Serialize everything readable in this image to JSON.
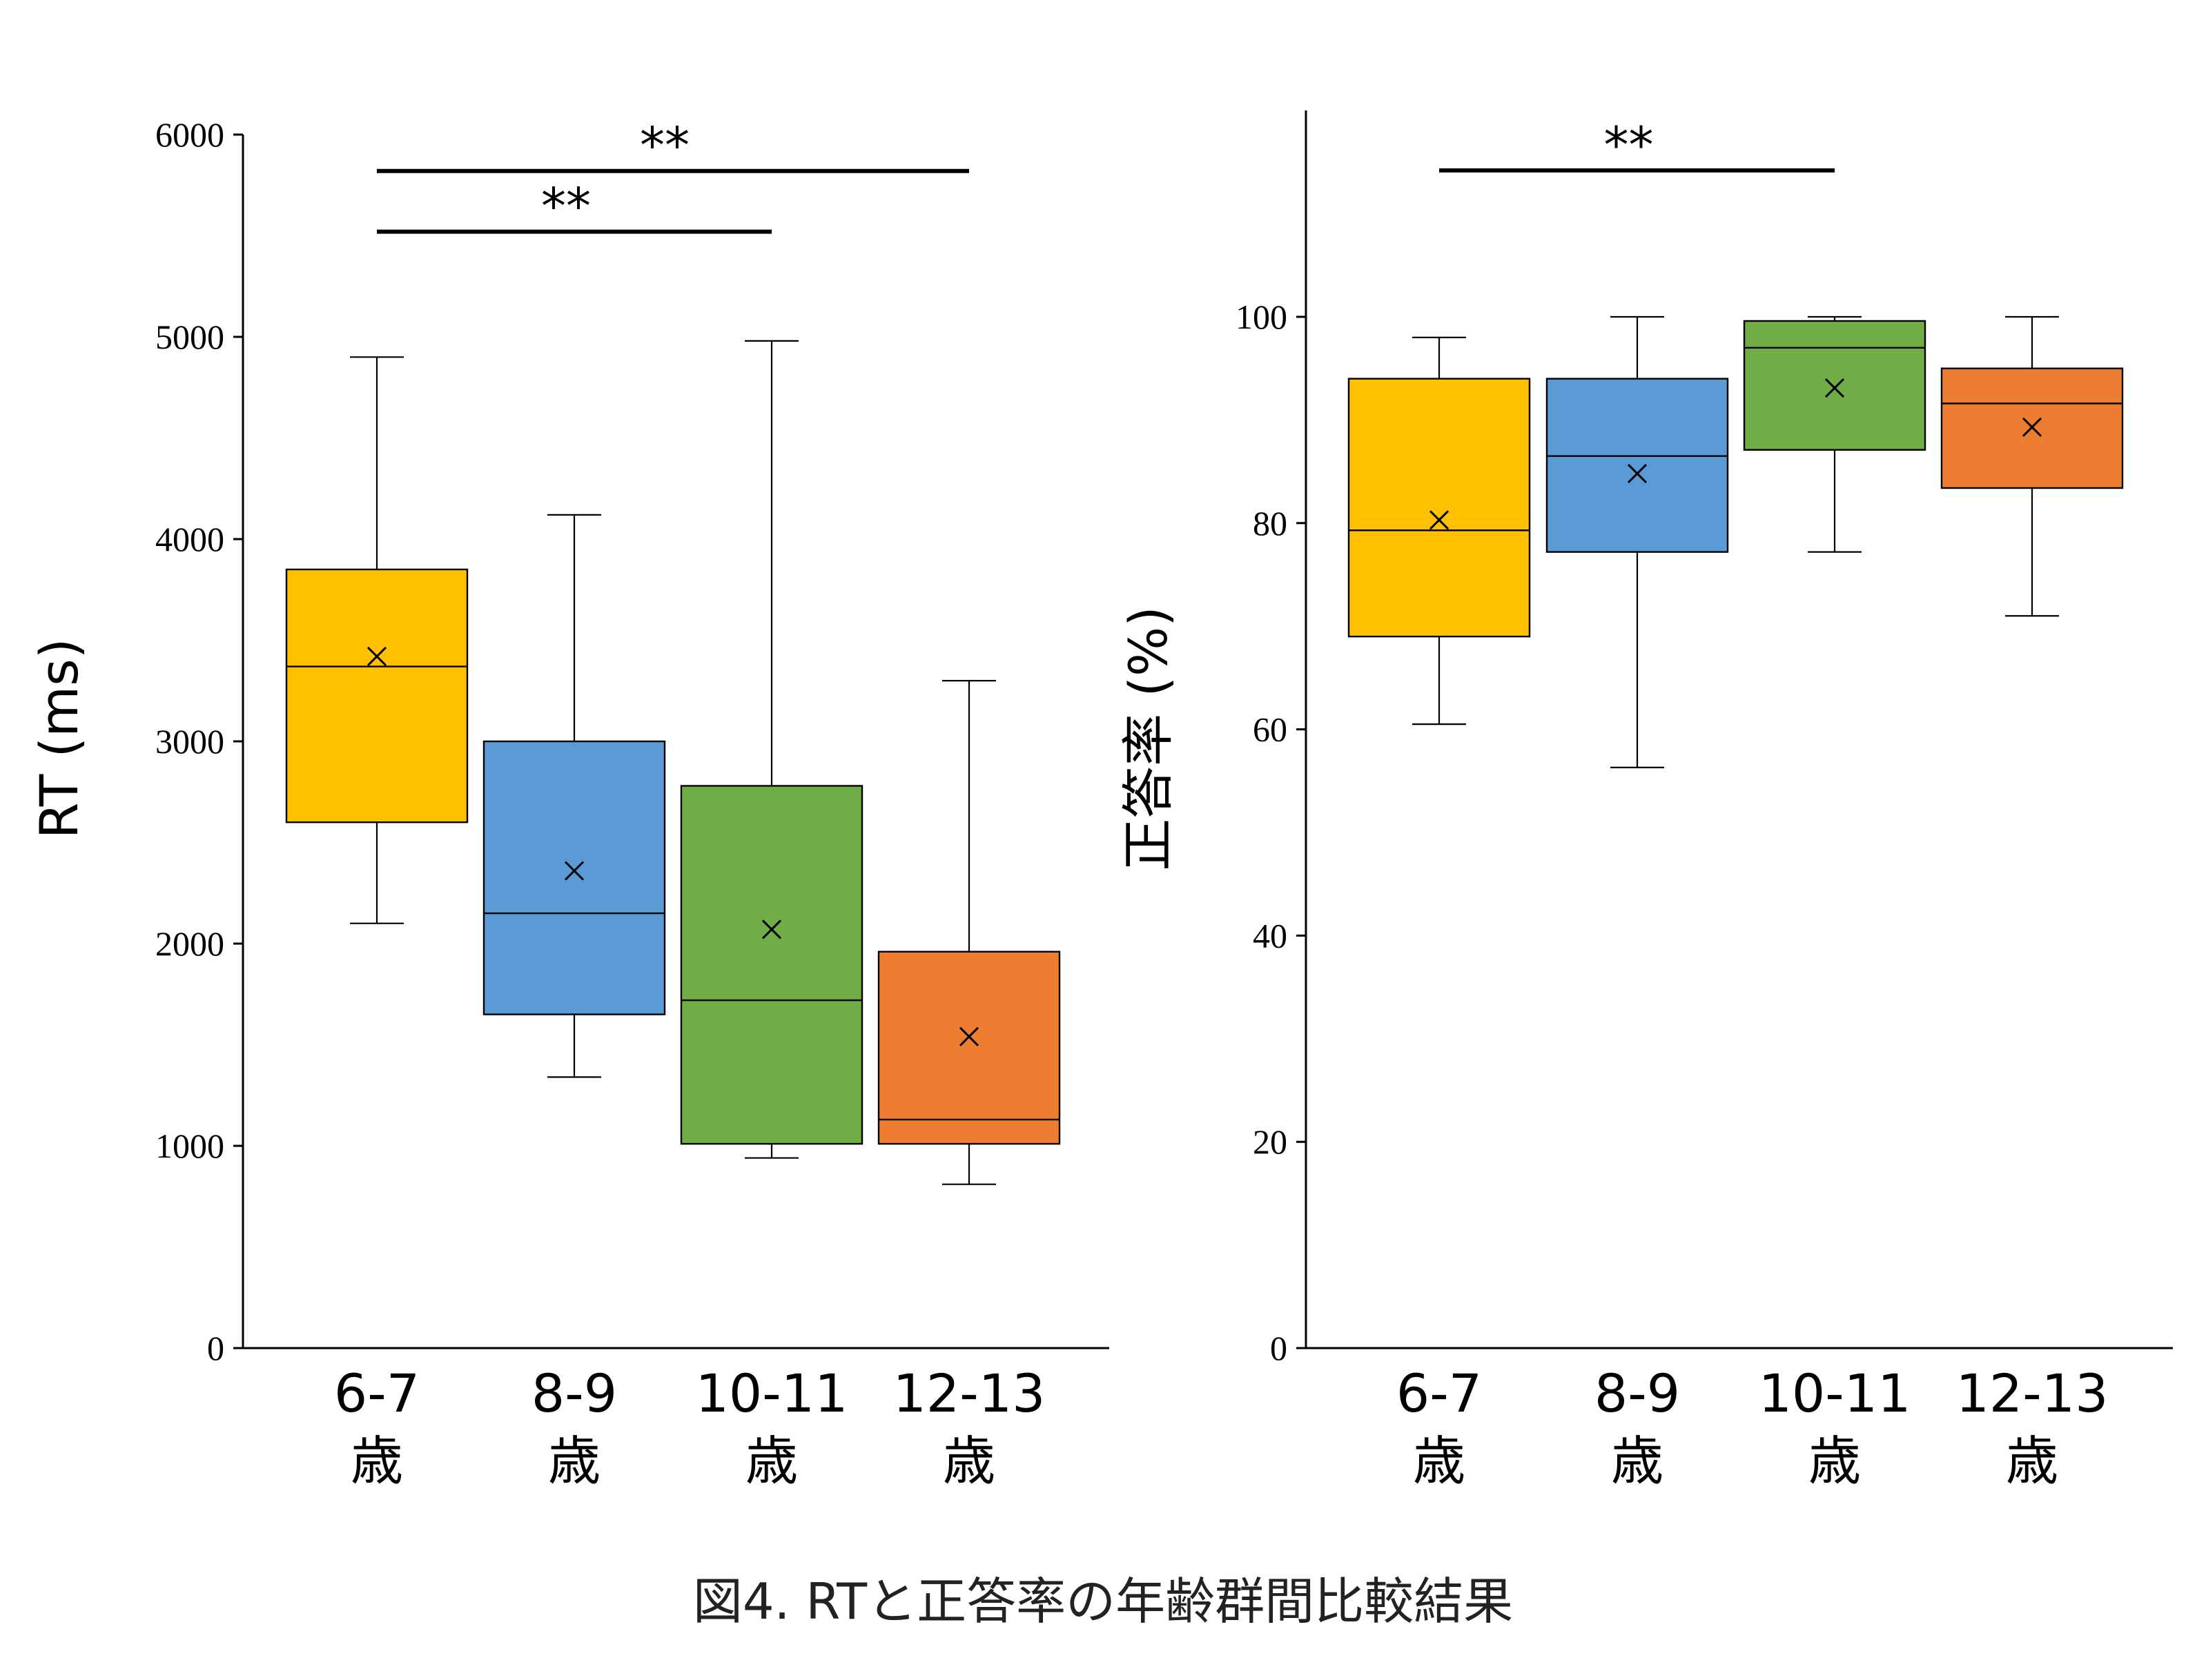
{
  "caption": "図4. RTと正答率の年齢群間比較結果",
  "chart_data": [
    {
      "type": "box",
      "ylabel": "RT (ms)",
      "ylim": [
        0,
        6000
      ],
      "yticks": [
        0,
        1000,
        2000,
        3000,
        4000,
        5000,
        6000
      ],
      "categories": [
        "6-7\n歳",
        "8-9\n歳",
        "10-11\n歳",
        "12-13\n歳"
      ],
      "boxes": [
        {
          "whisker_low": 2100,
          "q1": 2600,
          "median": 3370,
          "q3": 3850,
          "whisker_high": 4900,
          "mean": 3420,
          "color": "#FFC000"
        },
        {
          "whisker_low": 1340,
          "q1": 1650,
          "median": 2150,
          "q3": 3000,
          "whisker_high": 4120,
          "mean": 2360,
          "color": "#5B9BD5"
        },
        {
          "whisker_low": 940,
          "q1": 1010,
          "median": 1720,
          "q3": 2780,
          "whisker_high": 4980,
          "mean": 2070,
          "color": "#70AD47"
        },
        {
          "whisker_low": 810,
          "q1": 1010,
          "median": 1130,
          "q3": 1960,
          "whisker_high": 3300,
          "mean": 1540,
          "color": "#ED7D31"
        }
      ],
      "significance": [
        {
          "from": 0,
          "to": 3,
          "y": 5820,
          "label": "**"
        },
        {
          "from": 0,
          "to": 2,
          "y": 5520,
          "label": "**"
        }
      ]
    },
    {
      "type": "box",
      "ylabel": "正答率 (%)",
      "ylim": [
        0,
        120
      ],
      "yticks": [
        0,
        20,
        40,
        60,
        80,
        100
      ],
      "categories": [
        "6-7\n歳",
        "8-9\n歳",
        "10-11\n歳",
        "12-13\n歳"
      ],
      "boxes": [
        {
          "whisker_low": 60.5,
          "q1": 69,
          "median": 79.3,
          "q3": 94,
          "whisker_high": 98,
          "mean": 80.3,
          "color": "#FFC000"
        },
        {
          "whisker_low": 56.3,
          "q1": 77.2,
          "median": 86.5,
          "q3": 94,
          "whisker_high": 100,
          "mean": 84.8,
          "color": "#5B9BD5"
        },
        {
          "whisker_low": 77.2,
          "q1": 87.1,
          "median": 97,
          "q3": 99.6,
          "whisker_high": 100,
          "mean": 93.1,
          "color": "#70AD47"
        },
        {
          "whisker_low": 71,
          "q1": 83.4,
          "median": 91.6,
          "q3": 95,
          "whisker_high": 100,
          "mean": 89.3,
          "color": "#ED7D31"
        }
      ],
      "significance": [
        {
          "from": 0,
          "to": 2,
          "y": 114.2,
          "label": "**"
        }
      ]
    }
  ]
}
